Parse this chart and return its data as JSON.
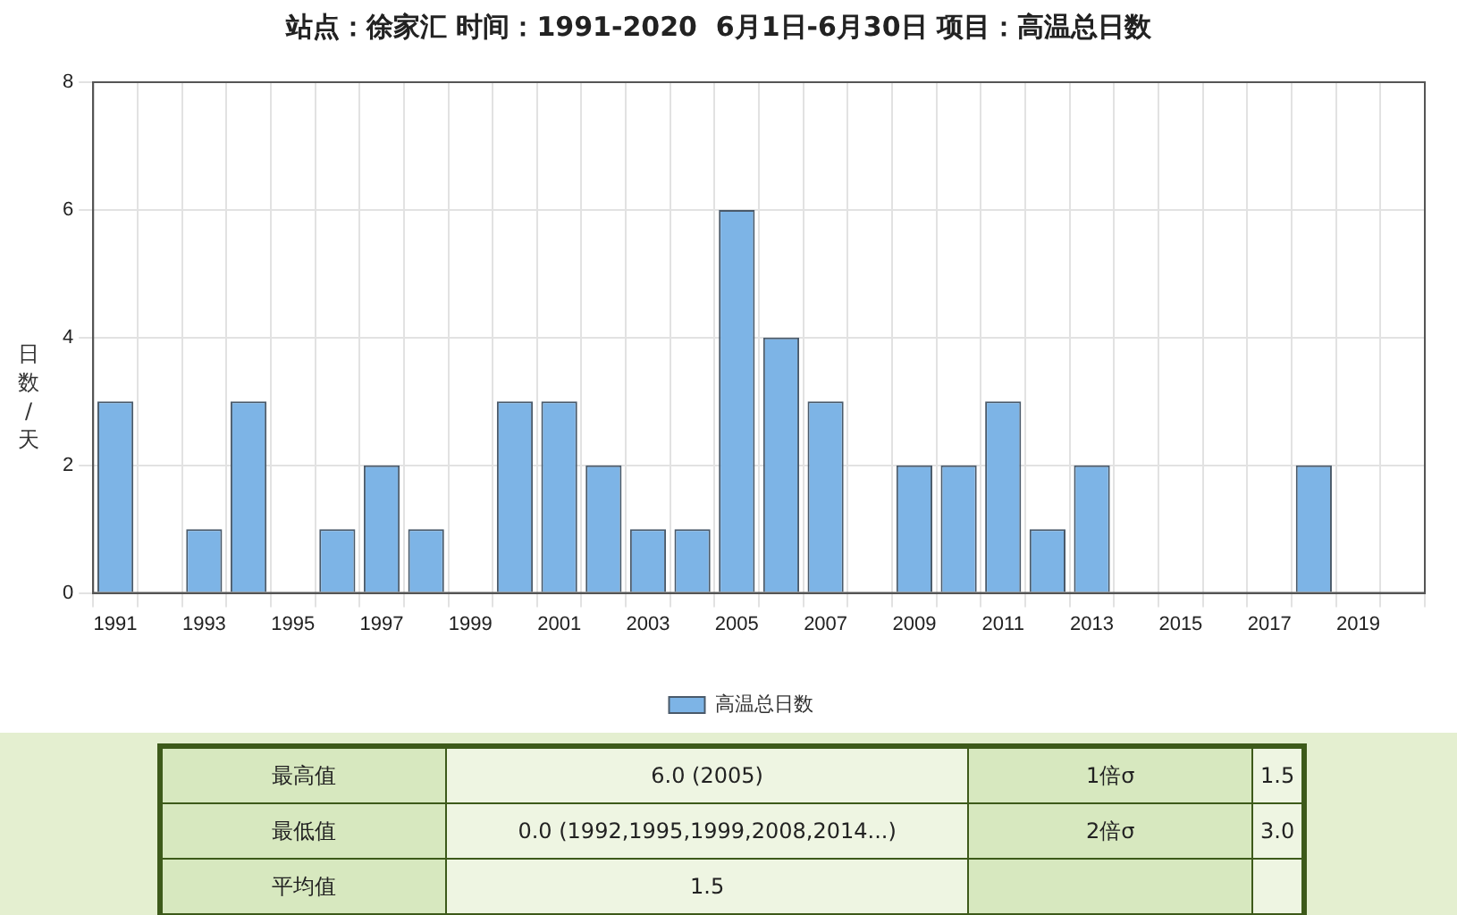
{
  "chart_data": {
    "type": "bar",
    "title": "站点：徐家汇 时间：1991-2020  6月1日-6月30日 项目：高温总日数",
    "ylabel": "日数/天",
    "categories": [
      "1991",
      null,
      "1993",
      null,
      "1995",
      null,
      "1997",
      null,
      "1999",
      null,
      "2001",
      null,
      "2003",
      null,
      "2005",
      null,
      "2007",
      null,
      "2009",
      null,
      "2011",
      null,
      "2013",
      null,
      "2015",
      null,
      "2017",
      null,
      "2019",
      null
    ],
    "series": [
      {
        "name": "高温总日数",
        "color": "#7db4e6",
        "values": [
          3,
          0,
          1,
          3,
          0,
          1,
          2,
          1,
          0,
          3,
          3,
          2,
          1,
          1,
          6,
          4,
          3,
          0,
          2,
          2,
          3,
          1,
          2,
          0,
          0,
          0,
          0,
          2,
          0,
          0
        ]
      }
    ],
    "ylim": [
      0,
      8
    ],
    "yticks": [
      0,
      2,
      4,
      6,
      8
    ],
    "grid": true,
    "legend": "bottom",
    "annotations": [
      "最高值",
      "6.0 (2005)",
      "1倍σ",
      "1.5",
      "最低值",
      "0.0 (1992,1995,1999,2008,2014...)",
      "2倍σ",
      "3.0",
      "平均值",
      "1.5"
    ]
  }
}
